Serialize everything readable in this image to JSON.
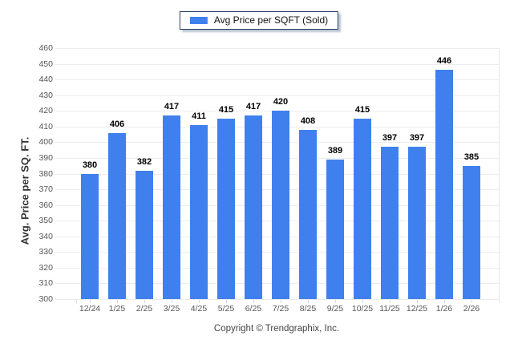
{
  "chart_data": {
    "type": "bar",
    "legend": "Avg Price per SQFT (Sold)",
    "ylabel": "Avg. Price per SQ. FT.",
    "categories": [
      "12/24",
      "1/25",
      "2/25",
      "3/25",
      "4/25",
      "5/25",
      "6/25",
      "7/25",
      "8/25",
      "9/25",
      "10/25",
      "11/25",
      "12/25",
      "1/26",
      "2/26"
    ],
    "values": [
      380,
      406,
      382,
      417,
      411,
      415,
      417,
      420,
      408,
      389,
      415,
      397,
      397,
      446,
      385
    ],
    "ylim": [
      300,
      460
    ],
    "ytick_step": 10,
    "grid": "horizontal",
    "legend_position": "top-center",
    "bar_color": "#4080EE",
    "gridline_color": "#ECECEC",
    "axis_text_color": "#555555",
    "value_label_color": "#000000"
  },
  "footer": {
    "copyright": "Copyright © Trendgraphix, Inc."
  }
}
